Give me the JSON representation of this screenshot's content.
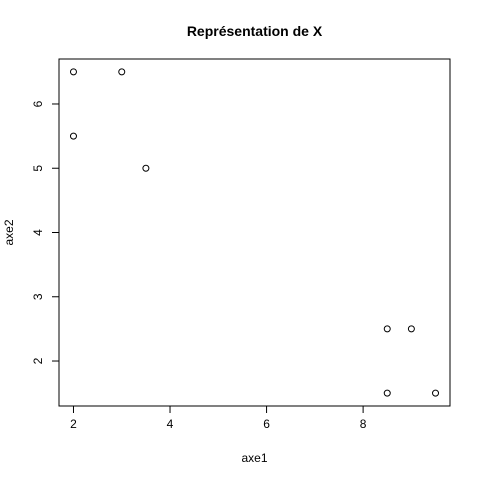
{
  "chart_data": {
    "type": "scatter",
    "title": "Représentation de X",
    "xlabel": "axe1",
    "ylabel": "axe2",
    "xlim": [
      1.7,
      9.8
    ],
    "ylim": [
      1.3,
      6.7
    ],
    "x_ticks": [
      2,
      4,
      6,
      8
    ],
    "y_ticks": [
      2,
      3,
      4,
      5,
      6
    ],
    "grid": false,
    "marker": "open-circle",
    "series": [
      {
        "points": [
          {
            "x": 2,
            "y": 6.5
          },
          {
            "x": 3,
            "y": 6.5
          },
          {
            "x": 2,
            "y": 5.5
          },
          {
            "x": 3.5,
            "y": 5
          },
          {
            "x": 8.5,
            "y": 2.5
          },
          {
            "x": 9,
            "y": 2.5
          },
          {
            "x": 8.5,
            "y": 1.5
          },
          {
            "x": 9.5,
            "y": 1.5
          }
        ]
      }
    ]
  },
  "colors": {
    "background": "#ffffff",
    "ink": "#000000"
  }
}
